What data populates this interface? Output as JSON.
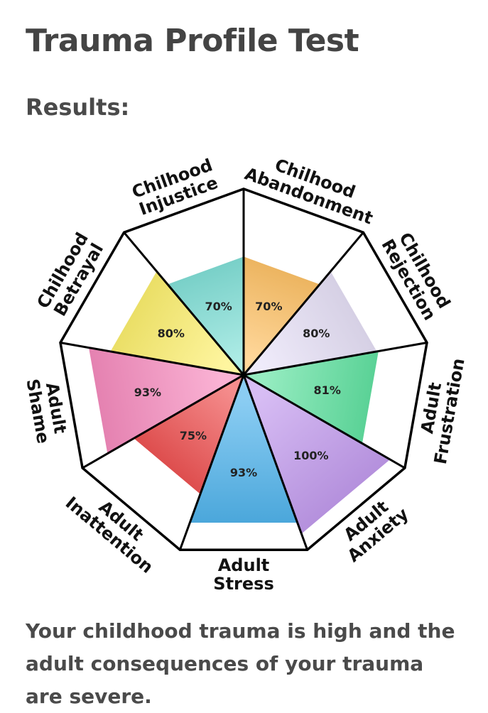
{
  "page": {
    "title": "Trauma Profile Test",
    "results_heading": "Results:",
    "summary": "Your childhood trauma is high and the adult consequences of your trauma are severe."
  },
  "chart_data": {
    "type": "polar-area",
    "value_unit": "%",
    "rmax": 100,
    "title": "",
    "slices": [
      {
        "label": "Chilhood Injustice",
        "label_lines": [
          "Chilhood",
          "Injustice"
        ],
        "value": 70,
        "color": "#7fe0d7"
      },
      {
        "label": "Chilhood Abandonment",
        "label_lines": [
          "Chilhood",
          "Abandonment"
        ],
        "value": 70,
        "color": "#ffc264"
      },
      {
        "label": "Chilhood Rejection",
        "label_lines": [
          "Chilhood",
          "Rejection"
        ],
        "value": 80,
        "color": "#e6e0f7"
      },
      {
        "label": "Adult Frustration",
        "label_lines": [
          "Adult",
          "Frustration"
        ],
        "value": 81,
        "color": "#5ee2a0"
      },
      {
        "label": "Adult Anxiety",
        "label_lines": [
          "Adult",
          "Anxiety"
        ],
        "value": 100,
        "color": "#c199ee"
      },
      {
        "label": "Adult Stress",
        "label_lines": [
          "Adult",
          "Stress"
        ],
        "value": 93,
        "color": "#4cb2ec"
      },
      {
        "label": "Adult Inattention",
        "label_lines": [
          "Adult",
          "Inattention"
        ],
        "value": 75,
        "color": "#ef4f4f"
      },
      {
        "label": "Adult Shame",
        "label_lines": [
          "Adult",
          "Shame"
        ],
        "value": 93,
        "color": "#f789bd"
      },
      {
        "label": "Chilhood Betrayal",
        "label_lines": [
          "Chilhood",
          "Betrayal"
        ],
        "value": 80,
        "color": "#fdf06b"
      }
    ],
    "value_labels": [
      "70%",
      "70%",
      "80%",
      "81%",
      "100%",
      "93%",
      "75%",
      "93%",
      "80%"
    ]
  }
}
